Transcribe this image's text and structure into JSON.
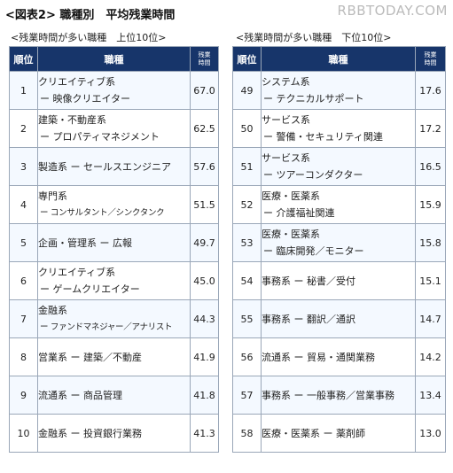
{
  "header": {
    "title": "<図表2> 職種別　平均残業時間",
    "watermark": "RBBTODAY.COM"
  },
  "top_table": {
    "caption": "<残業時間が多い職種　上位10位>",
    "columns": {
      "rank": "順位",
      "job": "職種",
      "hours_line1": "残業",
      "hours_line2": "時間"
    },
    "rows": [
      {
        "rank": "1",
        "line1": "クリエイティブ系",
        "line2": "ー 映像クリエイター",
        "hours": "67.0"
      },
      {
        "rank": "2",
        "line1": "建築・不動産系",
        "line2": "ー プロパティマネジメント",
        "hours": "62.5"
      },
      {
        "rank": "3",
        "line1": "製造系 ー セールスエンジニア",
        "line2": "",
        "hours": "57.6"
      },
      {
        "rank": "4",
        "line1": "専門系",
        "line2": "ー コンサルタント／シンクタンク",
        "hours": "51.5"
      },
      {
        "rank": "5",
        "line1": "企画・管理系 ー 広報",
        "line2": "",
        "hours": "49.7"
      },
      {
        "rank": "6",
        "line1": "クリエイティブ系",
        "line2": "ー ゲームクリエイター",
        "hours": "45.0"
      },
      {
        "rank": "7",
        "line1": "金融系",
        "line2": "ー ファンドマネジャー／アナリスト",
        "hours": "44.3"
      },
      {
        "rank": "8",
        "line1": "営業系 ー 建築／不動産",
        "line2": "",
        "hours": "41.9"
      },
      {
        "rank": "9",
        "line1": "流通系 ー 商品管理",
        "line2": "",
        "hours": "41.8"
      },
      {
        "rank": "10",
        "line1": "金融系 ー 投資銀行業務",
        "line2": "",
        "hours": "41.3"
      }
    ]
  },
  "bottom_table": {
    "caption": "<残業時間が多い職種　下位10位>",
    "columns": {
      "rank": "順位",
      "job": "職種",
      "hours_line1": "残業",
      "hours_line2": "時間"
    },
    "rows": [
      {
        "rank": "49",
        "line1": "システム系",
        "line2": "ー テクニカルサポート",
        "hours": "17.6"
      },
      {
        "rank": "50",
        "line1": "サービス系",
        "line2": "ー 警備・セキュリティ関連",
        "hours": "17.2"
      },
      {
        "rank": "51",
        "line1": "サービス系",
        "line2": "ー ツアーコンダクター",
        "hours": "16.5"
      },
      {
        "rank": "52",
        "line1": "医療・医薬系",
        "line2": "ー 介護福祉関連",
        "hours": "15.9"
      },
      {
        "rank": "53",
        "line1": "医療・医薬系",
        "line2": "ー 臨床開発／モニター",
        "hours": "15.8"
      },
      {
        "rank": "54",
        "line1": "事務系 ー 秘書／受付",
        "line2": "",
        "hours": "15.1"
      },
      {
        "rank": "55",
        "line1": "事務系 ー 翻訳／通訳",
        "line2": "",
        "hours": "14.7"
      },
      {
        "rank": "56",
        "line1": "流通系 ー 貿易・通関業務",
        "line2": "",
        "hours": "14.2"
      },
      {
        "rank": "57",
        "line1": "事務系 ー 一般事務／営業事務",
        "line2": "",
        "hours": "13.4"
      },
      {
        "rank": "58",
        "line1": "医療・医薬系 ー 薬剤師",
        "line2": "",
        "hours": "13.0"
      }
    ]
  }
}
